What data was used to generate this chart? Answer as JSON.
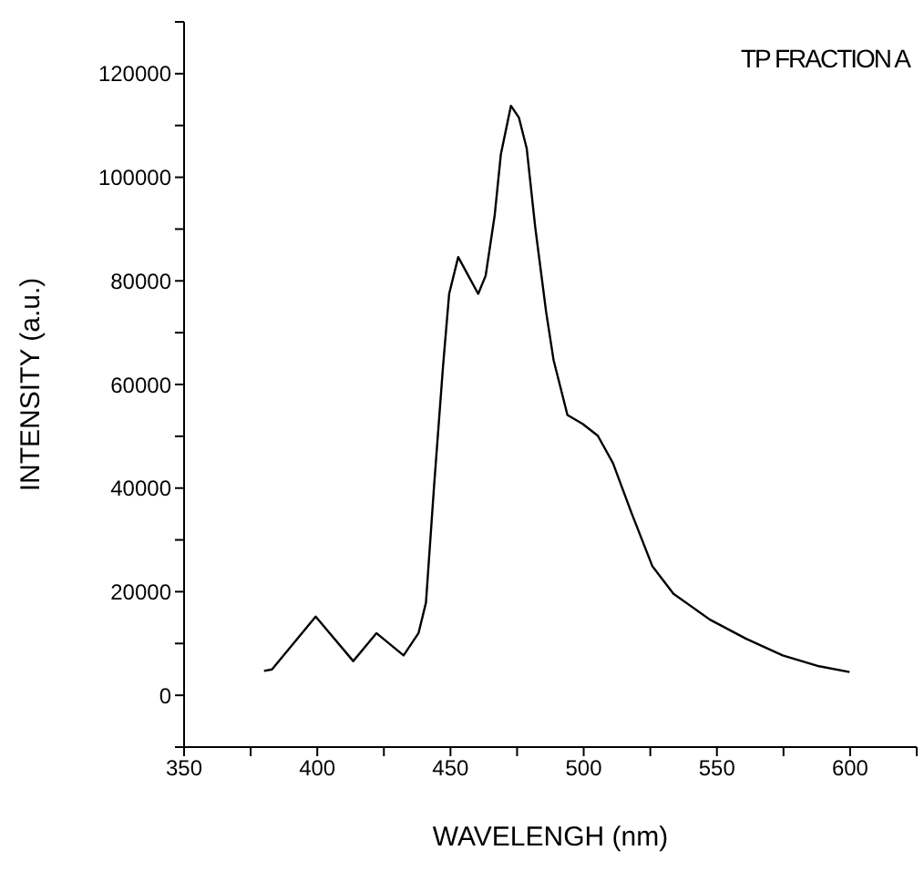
{
  "chart_data": {
    "type": "line",
    "title": "TP FRACTION A",
    "xlabel": "WAVELENGH (nm)",
    "ylabel": "INTENSITY (a.u.)",
    "x": [
      380,
      383,
      399.4,
      413.5,
      422.2,
      432.4,
      438,
      440.8,
      443.8,
      447.2,
      449.5,
      452.9,
      460.4,
      463.2,
      466.6,
      468.9,
      472.7,
      475.7,
      478.6,
      481.8,
      485.9,
      488.7,
      493.9,
      499.6,
      505.3,
      511,
      517.8,
      525.8,
      533.7,
      547.4,
      561,
      574.7,
      588.4,
      599.8
    ],
    "series": [
      {
        "color": "#000000",
        "values": [
          4700,
          5000,
          15200,
          6600,
          12000,
          7700,
          12000,
          17900,
          40100,
          63500,
          77500,
          84600,
          77500,
          81000,
          92700,
          104400,
          113800,
          111500,
          105600,
          90400,
          74000,
          64700,
          54100,
          52400,
          50100,
          44800,
          35400,
          24900,
          19600,
          14600,
          10900,
          7700,
          5600,
          4500
        ]
      }
    ],
    "xlim": [
      350,
      625
    ],
    "xticks": [
      350,
      {
        "value": 375,
        "label": null
      },
      400,
      {
        "value": 425,
        "label": null
      },
      450,
      {
        "value": 475,
        "label": null
      },
      500,
      {
        "value": 525,
        "label": null
      },
      550,
      {
        "value": 575,
        "label": null
      },
      600,
      {
        "value": 625,
        "label": null
      }
    ],
    "ylim": [
      -10000,
      130000
    ],
    "yticks": [
      {
        "value": -10000,
        "label": null
      },
      0,
      {
        "value": 10000,
        "label": null
      },
      20000,
      {
        "value": 30000,
        "label": null
      },
      40000,
      {
        "value": 50000,
        "label": null
      },
      60000,
      {
        "value": 70000,
        "label": null
      },
      80000,
      {
        "value": 90000,
        "label": null
      },
      100000,
      {
        "value": 110000,
        "label": null
      },
      120000,
      {
        "value": 130000,
        "label": null
      }
    ],
    "grid": false,
    "legend": false,
    "marker": "none",
    "line_style": "solid"
  }
}
